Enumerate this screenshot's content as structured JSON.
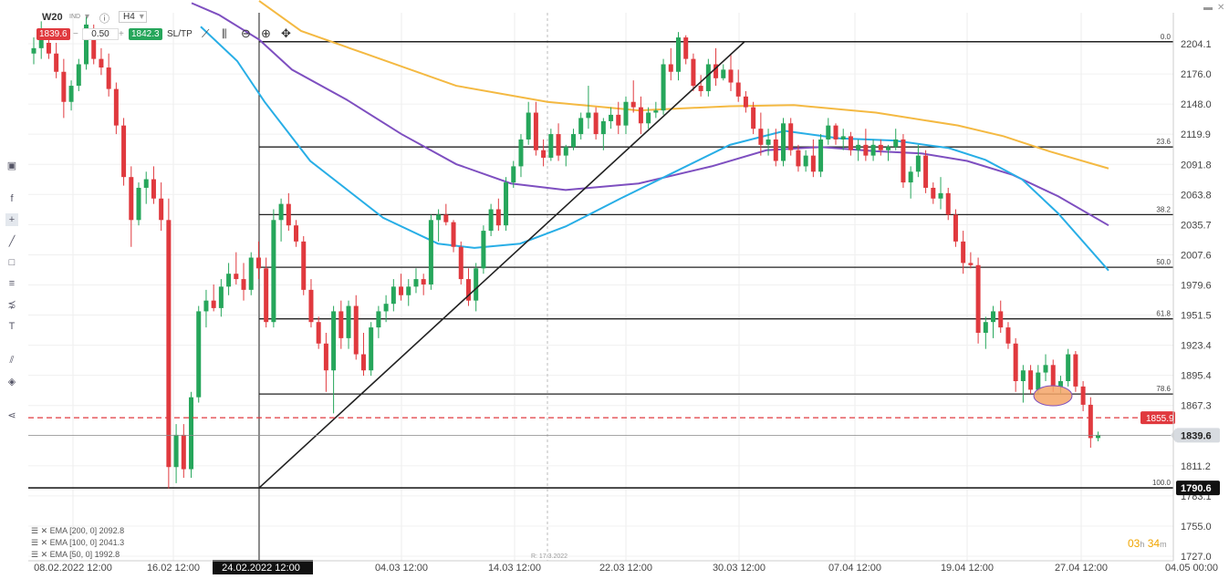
{
  "toolbar": {
    "symbol": "W20",
    "symbol_tag": "IND",
    "timeframe": "H4",
    "bid": "1839.6",
    "lot": "0.50",
    "ask": "1842.3",
    "sltp_label": "SL/TP"
  },
  "legend": [
    {
      "label": "EMA [200, 0] 2092.8",
      "color": "#f4b942"
    },
    {
      "label": "EMA [100, 0] 2041.3",
      "color": "#7e4fc0"
    },
    {
      "label": "EMA [50, 0] 1992.8",
      "color": "#28aee6"
    }
  ],
  "countdown": {
    "hours": "03",
    "hours_unit": "h",
    "minutes": "34",
    "minutes_unit": "m"
  },
  "chart_data": {
    "type": "candlestick",
    "y_ticks": [
      "2204.1",
      "2176.0",
      "2148.0",
      "2119.9",
      "2091.8",
      "2063.8",
      "2035.7",
      "2007.6",
      "1979.6",
      "1951.5",
      "1923.4",
      "1895.4",
      "1867.3",
      "1811.2",
      "1783.1",
      "1755.0",
      "1727.0"
    ],
    "y_range": [
      1727.0,
      2232.0
    ],
    "x_ticks": [
      "08.02.2022 12:00",
      "16.02 12:00",
      "24.02.2022 12:00",
      "04.03 12:00",
      "14.03 12:00",
      "22.03 12:00",
      "30.03 12:00",
      "07.04 12:00",
      "19.04 12:00",
      "27.04 12:00",
      "04.05 00:00"
    ],
    "highlight_x_label": "24.02.2022 12:00",
    "vline_label": "R: 17.3.2022",
    "current_price": "1839.6",
    "alert_price": "1855.9",
    "fib_low_price": "1790.6",
    "fibonacci": [
      {
        "level": "0.0",
        "price": 2206.0
      },
      {
        "level": "23.6",
        "price": 2108.0
      },
      {
        "level": "38.2",
        "price": 2045.0
      },
      {
        "level": "50.0",
        "price": 1996.0
      },
      {
        "level": "61.8",
        "price": 1948.0
      },
      {
        "level": "78.6",
        "price": 1878.0
      },
      {
        "level": "100.0",
        "price": 1790.6
      }
    ],
    "ema_series": [
      {
        "name": "EMA [200, 0]",
        "color": "#f4b942",
        "points": [
          [
            284,
            2244
          ],
          [
            330,
            2216
          ],
          [
            400,
            2195
          ],
          [
            500,
            2165
          ],
          [
            600,
            2150
          ],
          [
            700,
            2142
          ],
          [
            800,
            2146
          ],
          [
            870,
            2147
          ],
          [
            960,
            2140
          ],
          [
            1050,
            2128
          ],
          [
            1100,
            2118
          ],
          [
            1150,
            2104
          ],
          [
            1215,
            2088
          ]
        ]
      },
      {
        "name": "EMA [100, 0]",
        "color": "#7e4fc0",
        "points": [
          [
            210,
            2242
          ],
          [
            240,
            2231
          ],
          [
            284,
            2208
          ],
          [
            320,
            2180
          ],
          [
            380,
            2152
          ],
          [
            440,
            2120
          ],
          [
            500,
            2092
          ],
          [
            560,
            2074
          ],
          [
            620,
            2068
          ],
          [
            700,
            2074
          ],
          [
            780,
            2090
          ],
          [
            840,
            2105
          ],
          [
            900,
            2108
          ],
          [
            960,
            2104
          ],
          [
            1010,
            2102
          ],
          [
            1060,
            2095
          ],
          [
            1110,
            2082
          ],
          [
            1160,
            2062
          ],
          [
            1215,
            2035
          ]
        ]
      },
      {
        "name": "EMA [50, 0]",
        "color": "#28aee6",
        "points": [
          [
            220,
            2220
          ],
          [
            260,
            2188
          ],
          [
            290,
            2150
          ],
          [
            340,
            2095
          ],
          [
            420,
            2042
          ],
          [
            480,
            2018
          ],
          [
            520,
            2014
          ],
          [
            570,
            2018
          ],
          [
            620,
            2034
          ],
          [
            680,
            2060
          ],
          [
            740,
            2085
          ],
          [
            800,
            2110
          ],
          [
            860,
            2123
          ],
          [
            920,
            2116
          ],
          [
            980,
            2114
          ],
          [
            1040,
            2107
          ],
          [
            1080,
            2096
          ],
          [
            1120,
            2078
          ],
          [
            1160,
            2046
          ],
          [
            1215,
            1993
          ]
        ]
      }
    ],
    "candles": [
      [
        0,
        2195,
        2210,
        2185,
        2200
      ],
      [
        1,
        2200,
        2225,
        2190,
        2215
      ],
      [
        2,
        2205,
        2218,
        2190,
        2195
      ],
      [
        3,
        2195,
        2205,
        2172,
        2178
      ],
      [
        4,
        2178,
        2190,
        2135,
        2150
      ],
      [
        5,
        2150,
        2170,
        2142,
        2165
      ],
      [
        6,
        2165,
        2190,
        2160,
        2185
      ],
      [
        7,
        2185,
        2230,
        2180,
        2222
      ],
      [
        8,
        2210,
        2222,
        2185,
        2190
      ],
      [
        9,
        2190,
        2200,
        2175,
        2182
      ],
      [
        10,
        2182,
        2195,
        2155,
        2162
      ],
      [
        11,
        2162,
        2168,
        2120,
        2128
      ],
      [
        12,
        2128,
        2135,
        2072,
        2080
      ],
      [
        13,
        2080,
        2090,
        2015,
        2040
      ],
      [
        14,
        2040,
        2075,
        2035,
        2070
      ],
      [
        15,
        2070,
        2085,
        2055,
        2078
      ],
      [
        16,
        2078,
        2090,
        2055,
        2060
      ],
      [
        17,
        2060,
        2075,
        2030,
        2040
      ],
      [
        18,
        2040,
        2060,
        1790,
        1810
      ],
      [
        19,
        1810,
        1850,
        1795,
        1840
      ],
      [
        20,
        1840,
        1850,
        1800,
        1808
      ],
      [
        21,
        1808,
        1880,
        1800,
        1875
      ],
      [
        22,
        1875,
        1960,
        1870,
        1955
      ],
      [
        23,
        1955,
        1975,
        1940,
        1965
      ],
      [
        24,
        1965,
        1980,
        1955,
        1958
      ],
      [
        25,
        1958,
        1985,
        1950,
        1978
      ],
      [
        26,
        1978,
        2000,
        1970,
        1990
      ],
      [
        27,
        1990,
        2010,
        1980,
        1985
      ],
      [
        28,
        1985,
        2000,
        1965,
        1975
      ],
      [
        29,
        1975,
        2010,
        1970,
        2005
      ],
      [
        30,
        2005,
        2020,
        1985,
        1995
      ],
      [
        31,
        1995,
        2005,
        1940,
        1945
      ],
      [
        32,
        1945,
        2050,
        1940,
        2040
      ],
      [
        33,
        2040,
        2060,
        2020,
        2055
      ],
      [
        34,
        2055,
        2065,
        2030,
        2035
      ],
      [
        35,
        2035,
        2040,
        2015,
        2020
      ],
      [
        36,
        2020,
        2025,
        1970,
        1975
      ],
      [
        37,
        1975,
        1985,
        1940,
        1945
      ],
      [
        38,
        1945,
        1950,
        1920,
        1925
      ],
      [
        39,
        1925,
        1935,
        1880,
        1900
      ],
      [
        40,
        1900,
        1960,
        1860,
        1955
      ],
      [
        41,
        1955,
        1965,
        1920,
        1930
      ],
      [
        42,
        1930,
        1965,
        1920,
        1960
      ],
      [
        43,
        1960,
        1970,
        1910,
        1915
      ],
      [
        44,
        1915,
        1935,
        1895,
        1900
      ],
      [
        45,
        1900,
        1945,
        1895,
        1940
      ],
      [
        46,
        1940,
        1960,
        1930,
        1955
      ],
      [
        47,
        1955,
        1970,
        1945,
        1962
      ],
      [
        48,
        1962,
        1985,
        1955,
        1978
      ],
      [
        49,
        1978,
        1990,
        1965,
        1970
      ],
      [
        50,
        1970,
        1985,
        1960,
        1978
      ],
      [
        51,
        1978,
        1995,
        1972,
        1985
      ],
      [
        52,
        1985,
        1990,
        1970,
        1980
      ],
      [
        53,
        1980,
        2045,
        1975,
        2040
      ],
      [
        54,
        2040,
        2050,
        2020,
        2045
      ],
      [
        55,
        2045,
        2055,
        2035,
        2038
      ],
      [
        56,
        2038,
        2040,
        2010,
        2015
      ],
      [
        57,
        2015,
        2020,
        1980,
        1985
      ],
      [
        58,
        1985,
        1995,
        1960,
        1965
      ],
      [
        59,
        1965,
        2000,
        1955,
        1995
      ],
      [
        60,
        1995,
        2035,
        1990,
        2030
      ],
      [
        61,
        2030,
        2055,
        2025,
        2050
      ],
      [
        62,
        2050,
        2060,
        2030,
        2035
      ],
      [
        63,
        2035,
        2080,
        2030,
        2075
      ],
      [
        64,
        2075,
        2095,
        2070,
        2090
      ],
      [
        65,
        2090,
        2120,
        2080,
        2115
      ],
      [
        66,
        2115,
        2150,
        2110,
        2140
      ],
      [
        67,
        2140,
        2150,
        2100,
        2105
      ],
      [
        68,
        2105,
        2115,
        2090,
        2098
      ],
      [
        69,
        2098,
        2125,
        2095,
        2120
      ],
      [
        70,
        2120,
        2130,
        2095,
        2100
      ],
      [
        71,
        2100,
        2110,
        2090,
        2108
      ],
      [
        72,
        2108,
        2125,
        2105,
        2120
      ],
      [
        73,
        2120,
        2140,
        2115,
        2135
      ],
      [
        74,
        2135,
        2165,
        2125,
        2140
      ],
      [
        75,
        2140,
        2145,
        2115,
        2120
      ],
      [
        76,
        2120,
        2135,
        2105,
        2132
      ],
      [
        77,
        2132,
        2145,
        2125,
        2138
      ],
      [
        78,
        2138,
        2150,
        2120,
        2128
      ],
      [
        79,
        2128,
        2155,
        2120,
        2150
      ],
      [
        80,
        2150,
        2170,
        2140,
        2145
      ],
      [
        81,
        2145,
        2155,
        2120,
        2130
      ],
      [
        82,
        2130,
        2145,
        2125,
        2140
      ],
      [
        83,
        2140,
        2150,
        2135,
        2142
      ],
      [
        84,
        2142,
        2190,
        2138,
        2185
      ],
      [
        85,
        2185,
        2200,
        2170,
        2178
      ],
      [
        86,
        2178,
        2215,
        2170,
        2210
      ],
      [
        87,
        2210,
        2212,
        2185,
        2190
      ],
      [
        88,
        2190,
        2195,
        2160,
        2165
      ],
      [
        89,
        2165,
        2175,
        2155,
        2160
      ],
      [
        90,
        2160,
        2190,
        2155,
        2185
      ],
      [
        91,
        2185,
        2200,
        2165,
        2172
      ],
      [
        92,
        2172,
        2185,
        2170,
        2180
      ],
      [
        93,
        2180,
        2195,
        2160,
        2168
      ],
      [
        94,
        2168,
        2180,
        2150,
        2155
      ],
      [
        95,
        2155,
        2160,
        2140,
        2145
      ],
      [
        96,
        2145,
        2150,
        2120,
        2125
      ],
      [
        97,
        2125,
        2140,
        2100,
        2110
      ],
      [
        98,
        2110,
        2125,
        2100,
        2115
      ],
      [
        99,
        2115,
        2125,
        2090,
        2095
      ],
      [
        100,
        2095,
        2135,
        2090,
        2130
      ],
      [
        101,
        2130,
        2135,
        2100,
        2105
      ],
      [
        102,
        2105,
        2110,
        2085,
        2090
      ],
      [
        103,
        2090,
        2105,
        2085,
        2100
      ],
      [
        104,
        2100,
        2115,
        2080,
        2085
      ],
      [
        105,
        2085,
        2120,
        2080,
        2115
      ],
      [
        106,
        2115,
        2135,
        2110,
        2128
      ],
      [
        107,
        2128,
        2130,
        2110,
        2115
      ],
      [
        108,
        2115,
        2125,
        2105,
        2118
      ],
      [
        109,
        2118,
        2122,
        2100,
        2105
      ],
      [
        110,
        2105,
        2115,
        2095,
        2110
      ],
      [
        111,
        2110,
        2125,
        2095,
        2100
      ],
      [
        112,
        2100,
        2115,
        2095,
        2110
      ],
      [
        113,
        2110,
        2115,
        2100,
        2105
      ],
      [
        114,
        2105,
        2110,
        2095,
        2108
      ],
      [
        115,
        2108,
        2125,
        2105,
        2115
      ],
      [
        116,
        2115,
        2120,
        2070,
        2075
      ],
      [
        117,
        2075,
        2090,
        2060,
        2085
      ],
      [
        118,
        2085,
        2110,
        2080,
        2100
      ],
      [
        119,
        2100,
        2105,
        2065,
        2070
      ],
      [
        120,
        2070,
        2075,
        2055,
        2060
      ],
      [
        121,
        2060,
        2080,
        2050,
        2065
      ],
      [
        122,
        2065,
        2070,
        2040,
        2045
      ],
      [
        123,
        2045,
        2050,
        2015,
        2020
      ],
      [
        124,
        2020,
        2030,
        1990,
        2000
      ],
      [
        125,
        2000,
        2010,
        1995,
        1998
      ],
      [
        126,
        1998,
        2005,
        1925,
        1935
      ],
      [
        127,
        1935,
        1950,
        1920,
        1945
      ],
      [
        128,
        1945,
        1960,
        1930,
        1955
      ],
      [
        129,
        1955,
        1965,
        1935,
        1940
      ],
      [
        130,
        1940,
        1945,
        1920,
        1925
      ],
      [
        131,
        1925,
        1930,
        1880,
        1890
      ],
      [
        132,
        1890,
        1905,
        1870,
        1900
      ],
      [
        133,
        1900,
        1905,
        1878,
        1882
      ],
      [
        134,
        1882,
        1905,
        1878,
        1898
      ],
      [
        135,
        1898,
        1915,
        1890,
        1905
      ],
      [
        136,
        1905,
        1910,
        1880,
        1885
      ],
      [
        137,
        1885,
        1895,
        1878,
        1890
      ],
      [
        138,
        1890,
        1920,
        1885,
        1915
      ],
      [
        139,
        1915,
        1918,
        1880,
        1885
      ],
      [
        140,
        1885,
        1890,
        1862,
        1868
      ],
      [
        141,
        1868,
        1875,
        1828,
        1837
      ],
      [
        142,
        1837,
        1843,
        1834,
        1840
      ]
    ],
    "grid": true
  }
}
